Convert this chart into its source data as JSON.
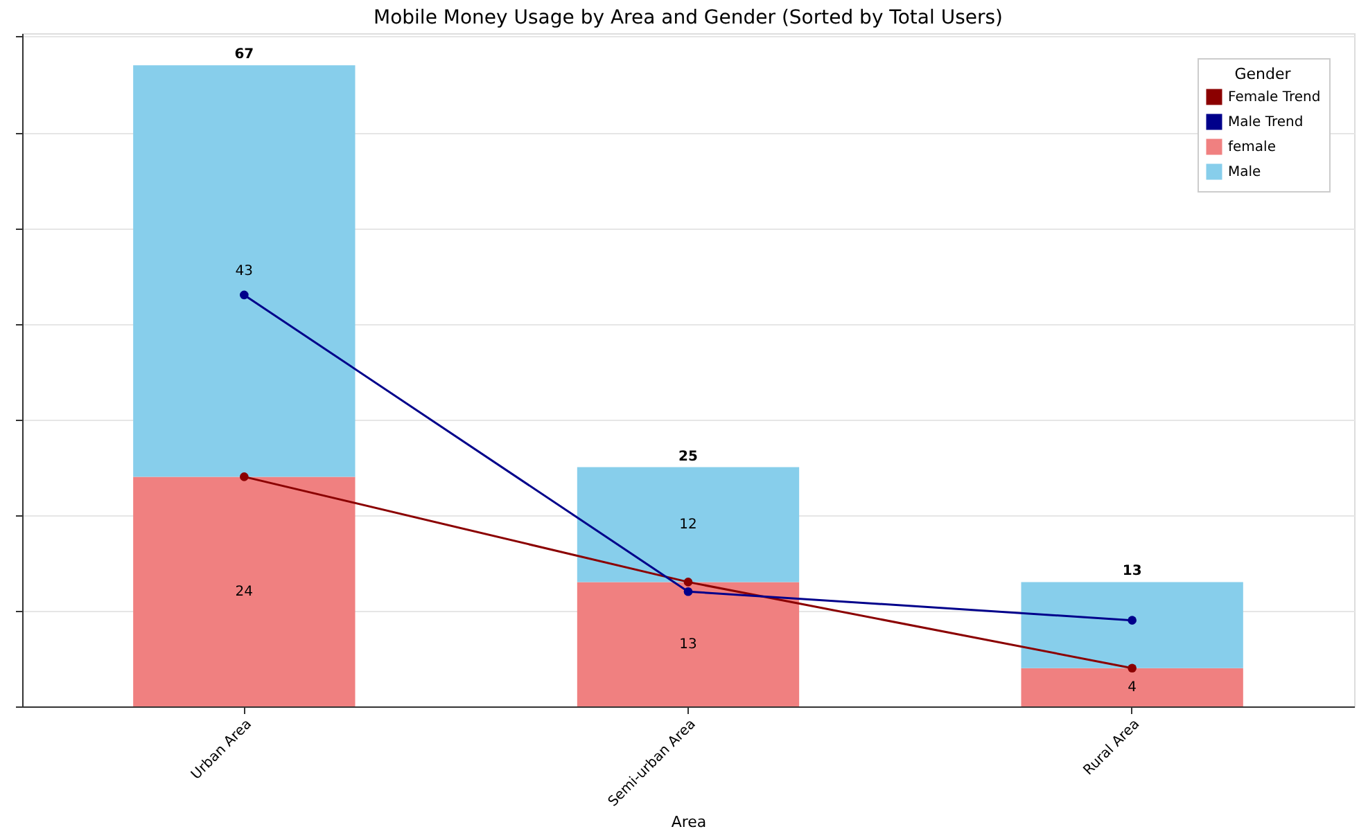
{
  "chart_data": {
    "type": "bar",
    "title": "Mobile Money Usage by Area and Gender (Sorted by Total Users)",
    "xlabel": "Area",
    "legend_title": "Gender",
    "categories": [
      "Urban Area",
      "Semi-urban Area",
      "Rural Area"
    ],
    "stacked": true,
    "series": [
      {
        "name": "female",
        "color": "#f08080",
        "values": [
          24,
          13,
          4
        ],
        "value_labels": [
          "24",
          "13",
          "4"
        ]
      },
      {
        "name": "Male",
        "color": "#87ceeb",
        "values": [
          43,
          12,
          9
        ],
        "value_labels": [
          "43",
          "12",
          null
        ]
      },
      {
        "name": "Female Trend",
        "type": "line",
        "color": "#8b0000",
        "values": [
          24,
          13,
          4
        ]
      },
      {
        "name": "Male Trend",
        "type": "line",
        "color": "#00008b",
        "values": [
          43,
          12,
          9
        ]
      }
    ],
    "totals": [
      "67",
      "25",
      "13"
    ],
    "ylim": [
      0,
      70.35
    ],
    "yticks": [
      {
        "value": 0,
        "label": null
      },
      {
        "value": 10,
        "label": null
      },
      {
        "value": 20,
        "label": null
      },
      {
        "value": 30,
        "label": null
      },
      {
        "value": 40,
        "label": null
      },
      {
        "value": 50,
        "label": null
      },
      {
        "value": 60,
        "label": null
      },
      {
        "value": 70,
        "label": null
      }
    ],
    "tick_labels": "x",
    "grid": "y",
    "legend": "top right",
    "marker": "circle",
    "line_style": "solid"
  }
}
